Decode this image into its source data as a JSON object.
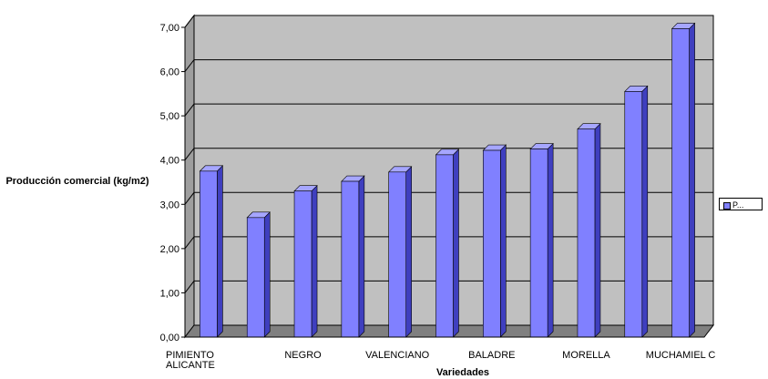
{
  "chart_data": {
    "type": "bar",
    "ylabel": "Producción comercial (kg/m2)",
    "xlabel": "Variedades",
    "ylim": [
      0,
      7
    ],
    "yticks": [
      "0,00",
      "1,00",
      "2,00",
      "3,00",
      "4,00",
      "5,00",
      "6,00",
      "7,00"
    ],
    "categories": [
      "PIMIENTO ALICANTE",
      "",
      "NEGRO",
      "",
      "VALENCIANO",
      "",
      "BALADRE",
      "",
      "MORELLA",
      "",
      "MUCHAMIEL C"
    ],
    "series": [
      {
        "name": "P...",
        "values": [
          3.75,
          2.7,
          3.3,
          3.52,
          3.73,
          4.12,
          4.22,
          4.25,
          4.7,
          5.55,
          6.97
        ]
      }
    ],
    "grid": true,
    "legend": "right",
    "colors": {
      "bar_front": "#8080ff",
      "bar_side": "#3f3fbf",
      "bar_top": "#a6a6ff",
      "plot_bg": "#c0c0c0",
      "wall_side": "#9e9e9e"
    }
  }
}
